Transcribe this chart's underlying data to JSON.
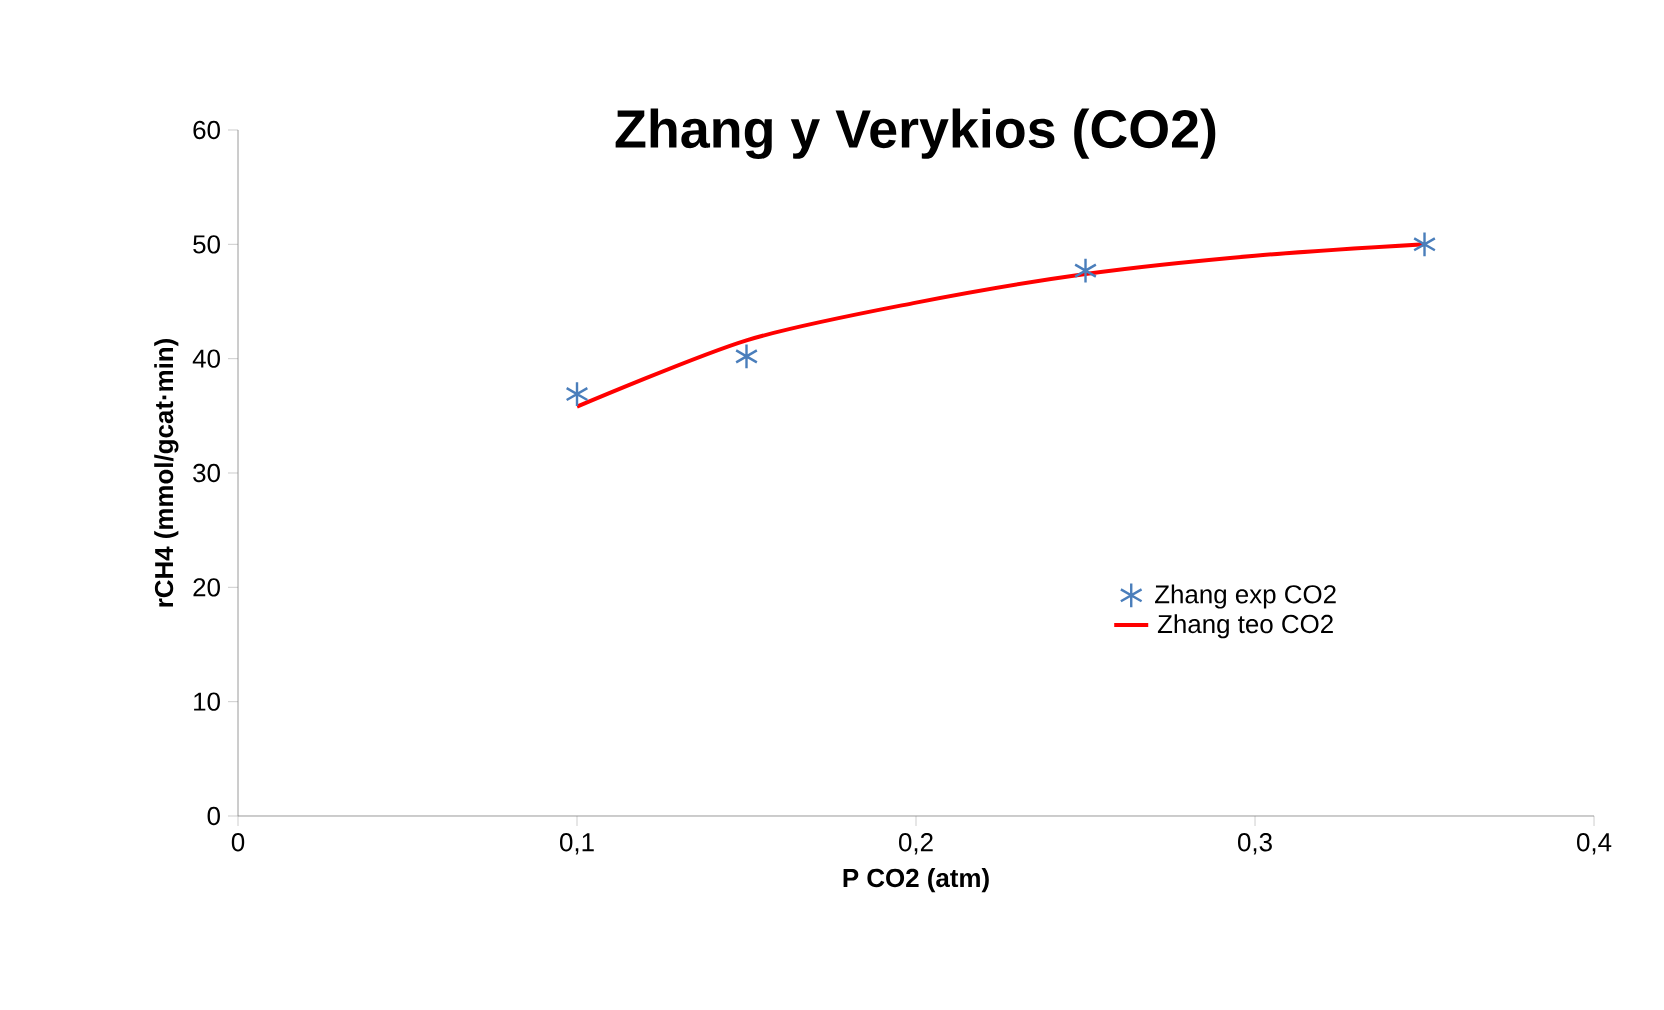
{
  "chart_data": {
    "type": "scatter",
    "title": "Zhang y Verykios (CO2)",
    "xlabel": "P CO2 (atm)",
    "ylabel": "rCH4 (mmol/gcat·min)",
    "xlim": [
      0,
      0.4
    ],
    "ylim": [
      0,
      60
    ],
    "xticks": [
      0,
      {
        "value": 0.1,
        "label": "0,1"
      },
      {
        "value": 0.2,
        "label": "0,2"
      },
      {
        "value": 0.3,
        "label": "0,3"
      },
      {
        "value": 0.4,
        "label": "0,4"
      }
    ],
    "yticks": [
      0,
      10,
      20,
      30,
      40,
      50,
      60
    ],
    "grid": false,
    "legend": "bottom right",
    "series": [
      {
        "name": "Zhang exp CO2",
        "type": "scatter",
        "marker": "cross",
        "color": "#4a7ebb",
        "x": [
          0.1,
          0.15,
          0.25,
          0.35
        ],
        "values": [
          36.9,
          40.2,
          47.7,
          50.0
        ]
      },
      {
        "name": "Zhang teo CO2",
        "type": "line",
        "marker": "none",
        "line_style": "solid",
        "color": "#ff0000",
        "x": [
          0.1,
          0.15,
          0.2,
          0.25,
          0.3,
          0.35
        ],
        "values": [
          35.8,
          41.6,
          44.9,
          47.4,
          49.0,
          50.0
        ]
      }
    ]
  }
}
